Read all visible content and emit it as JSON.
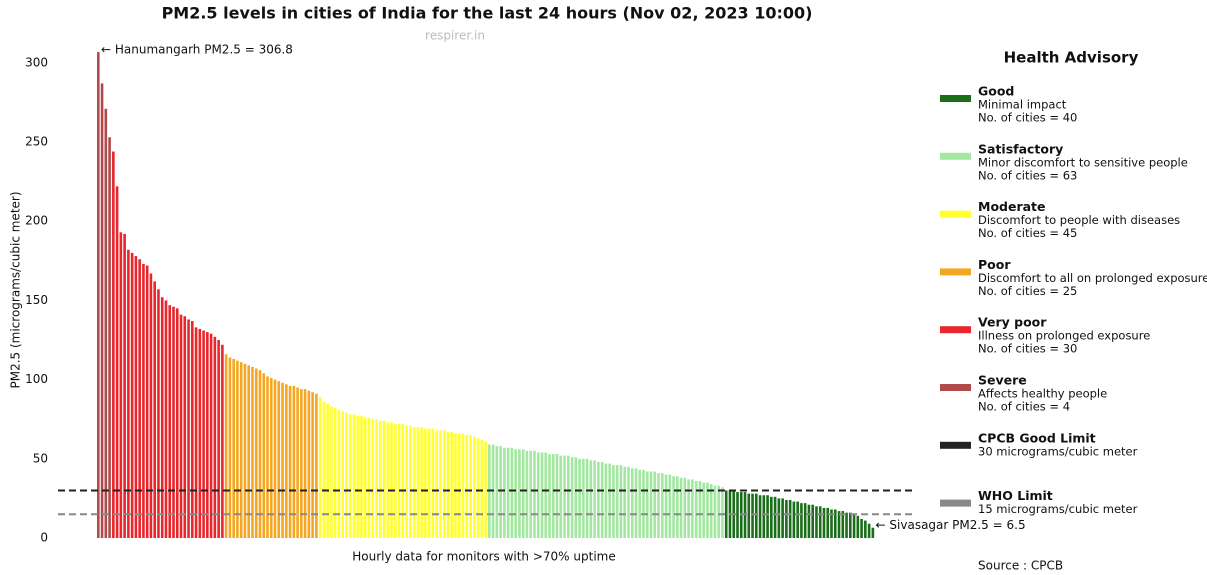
{
  "chart_data": {
    "type": "bar",
    "title": "PM2.5 levels in cities of India for the last 24 hours (Nov 02, 2023 10:00)",
    "subtitle": "respirer.in",
    "y_label": "PM2.5 (micrograms/cubic meter)",
    "x_label": "Hourly data for monitors with >70% uptime",
    "source": "Source : CPCB",
    "legend_title": "Health Advisory",
    "ylim": [
      0,
      310
    ],
    "yticks": [
      0,
      50,
      100,
      150,
      200,
      250,
      300
    ],
    "annotations": [
      "← Hanumangarh PM2.5 = 306.8",
      "← Sivasagar PM2.5 = 6.5"
    ],
    "series": [
      {
        "name": "Severe",
        "color": "#b04a4a",
        "description": "Affects healthy people",
        "count_label": "No. of cities = 4",
        "values": [
          306.8,
          287,
          271,
          253
        ]
      },
      {
        "name": "Very poor",
        "color": "#e8262b",
        "description": "Illness on prolonged exposure",
        "count_label": "No. of cities = 30",
        "values": [
          244,
          222,
          193,
          192,
          182,
          180,
          178,
          176,
          173,
          172,
          167,
          162,
          157,
          152,
          150,
          147,
          146,
          145,
          141,
          140,
          138,
          137,
          133,
          132,
          131,
          130,
          129,
          127,
          125,
          122
        ]
      },
      {
        "name": "Poor",
        "color": "#f5a623",
        "description": "Discomfort to all on prolonged exposure",
        "count_label": "No. of cities = 25",
        "values": [
          116,
          114,
          113,
          112,
          111,
          110,
          109,
          108,
          107,
          106,
          104,
          102,
          101,
          100,
          99,
          98,
          97,
          96,
          96,
          95,
          94,
          94,
          93,
          92,
          91
        ]
      },
      {
        "name": "Moderate",
        "color": "#ffff33",
        "description": "Discomfort to people with diseases",
        "count_label": "No. of cities = 45",
        "values": [
          89,
          86,
          85,
          83,
          82,
          81,
          80,
          79,
          78,
          78,
          77,
          77,
          76,
          76,
          75,
          75,
          74,
          74,
          73,
          73,
          72,
          72,
          72,
          71,
          71,
          70,
          70,
          70,
          69,
          69,
          69,
          68,
          68,
          68,
          67,
          67,
          66,
          66,
          66,
          65,
          65,
          64,
          63,
          62,
          61
        ]
      },
      {
        "name": "Satisfactory",
        "color": "#a3e8a0",
        "description": "Minor discomfort to sensitive people",
        "count_label": "No. of cities = 63",
        "values": [
          59,
          59,
          58,
          58,
          57,
          57,
          57,
          56,
          56,
          56,
          55,
          55,
          55,
          54,
          54,
          54,
          53,
          53,
          53,
          52,
          52,
          52,
          51,
          51,
          50,
          50,
          50,
          49,
          49,
          48,
          48,
          47,
          47,
          46,
          46,
          46,
          45,
          45,
          44,
          44,
          43,
          43,
          42,
          42,
          42,
          41,
          41,
          40,
          40,
          39,
          39,
          38,
          38,
          37,
          37,
          36,
          36,
          35,
          35,
          34,
          33,
          33,
          32
        ]
      },
      {
        "name": "Good",
        "color": "#1a6e1a",
        "description": "Minimal impact",
        "count_label": "No. of cities = 40",
        "values": [
          30,
          30,
          30,
          29,
          29,
          29,
          28,
          28,
          28,
          27,
          27,
          27,
          26,
          26,
          25,
          25,
          24,
          24,
          23,
          23,
          22,
          22,
          21,
          21,
          20,
          20,
          19,
          19,
          18,
          18,
          17,
          17,
          16,
          16,
          15,
          14,
          12,
          11,
          9,
          6.5
        ]
      }
    ],
    "reference_lines": [
      {
        "name": "CPCB Good Limit",
        "description": "30 micrograms/cubic meter",
        "value": 30,
        "color": "#222222"
      },
      {
        "name": "WHO Limit",
        "description": "15 micrograms/cubic meter",
        "value": 15,
        "color": "#888888"
      }
    ]
  }
}
